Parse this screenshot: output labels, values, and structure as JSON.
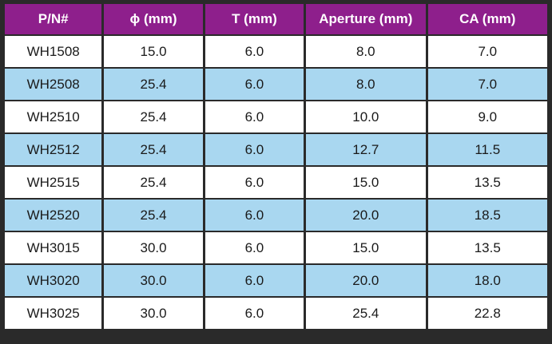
{
  "table": {
    "headers": [
      "P/N#",
      "ϕ (mm)",
      "T (mm)",
      "Aperture (mm)",
      "CA (mm)"
    ],
    "rows": [
      [
        "WH1508",
        "15.0",
        "6.0",
        "8.0",
        "7.0"
      ],
      [
        "WH2508",
        "25.4",
        "6.0",
        "8.0",
        "7.0"
      ],
      [
        "WH2510",
        "25.4",
        "6.0",
        "10.0",
        "9.0"
      ],
      [
        "WH2512",
        "25.4",
        "6.0",
        "12.7",
        "11.5"
      ],
      [
        "WH2515",
        "25.4",
        "6.0",
        "15.0",
        "13.5"
      ],
      [
        "WH2520",
        "25.4",
        "6.0",
        "20.0",
        "18.5"
      ],
      [
        "WH3015",
        "30.0",
        "6.0",
        "15.0",
        "13.5"
      ],
      [
        "WH3020",
        "30.0",
        "6.0",
        "20.0",
        "18.0"
      ],
      [
        "WH3025",
        "30.0",
        "6.0",
        "25.4",
        "22.8"
      ]
    ]
  },
  "colors": {
    "header_bg": "#8e1f8c",
    "header_text": "#ffffff",
    "row_bg": "#ffffff",
    "alt_row_bg": "#a9d7f0",
    "border": "#2a2a2a"
  }
}
